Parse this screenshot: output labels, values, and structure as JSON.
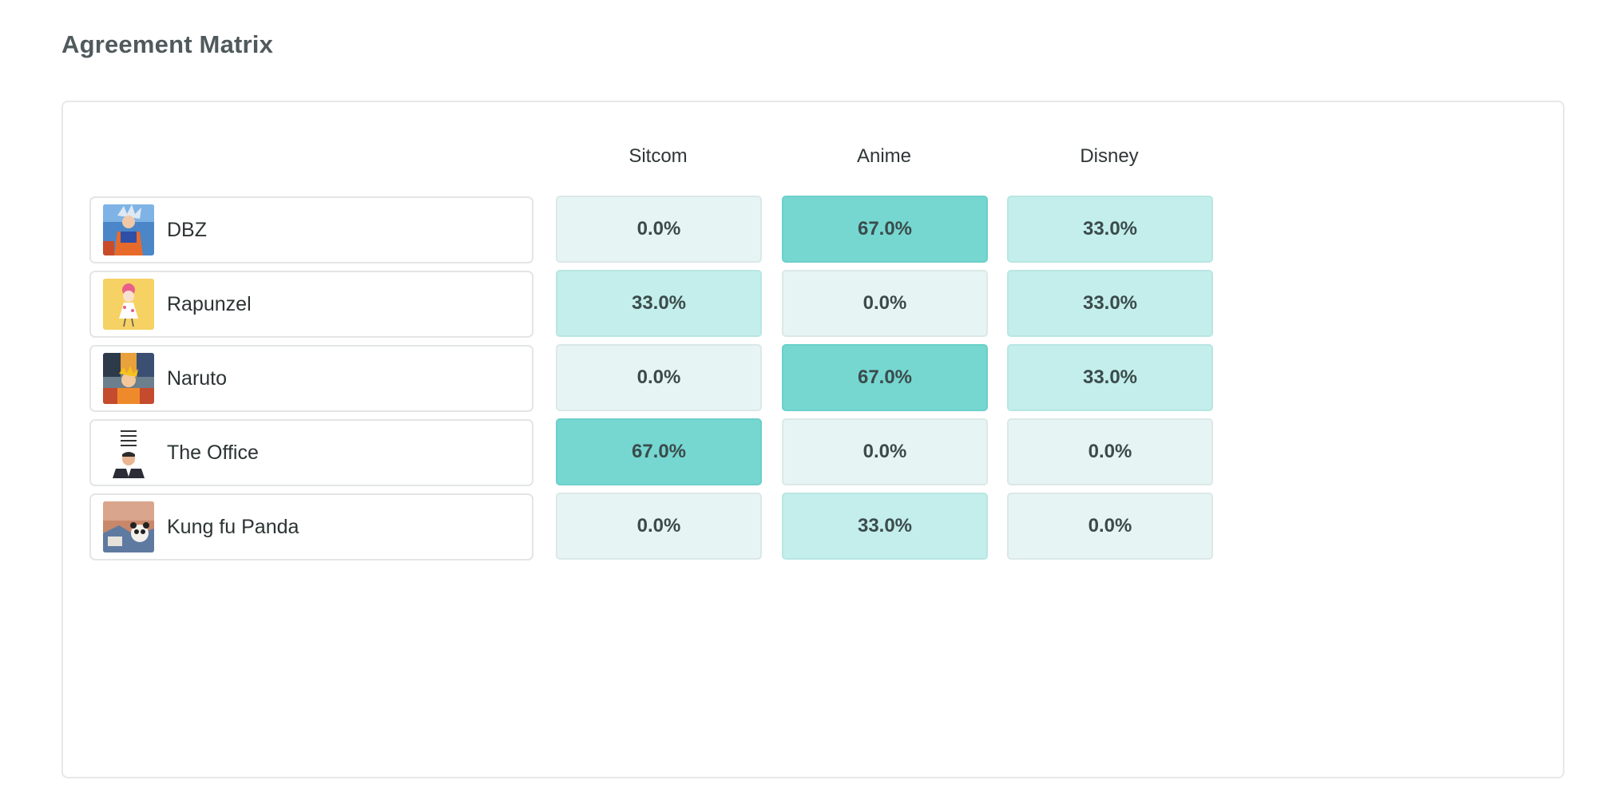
{
  "page": {
    "title": "Agreement Matrix"
  },
  "columns": [
    "Sitcom",
    "Anime",
    "Disney"
  ],
  "rows": [
    {
      "name": "DBZ",
      "thumb_icon": "dbz-thumbnail",
      "values": [
        "0.0%",
        "67.0%",
        "33.0%"
      ],
      "levels": [
        0,
        2,
        1
      ]
    },
    {
      "name": "Rapunzel",
      "thumb_icon": "rapunzel-thumbnail",
      "values": [
        "33.0%",
        "0.0%",
        "33.0%"
      ],
      "levels": [
        1,
        0,
        1
      ]
    },
    {
      "name": "Naruto",
      "thumb_icon": "naruto-thumbnail",
      "values": [
        "0.0%",
        "67.0%",
        "33.0%"
      ],
      "levels": [
        0,
        2,
        1
      ]
    },
    {
      "name": "The Office",
      "thumb_icon": "the-office-thumbnail",
      "values": [
        "67.0%",
        "0.0%",
        "0.0%"
      ],
      "levels": [
        2,
        0,
        0
      ]
    },
    {
      "name": "Kung fu Panda",
      "thumb_icon": "kung-fu-panda-thumbnail",
      "values": [
        "0.0%",
        "33.0%",
        "0.0%"
      ],
      "levels": [
        0,
        1,
        0
      ]
    }
  ],
  "colors": {
    "level_0": "#e7f4f4",
    "level_1": "#c3eeeb",
    "level_2": "#76d7d1"
  }
}
